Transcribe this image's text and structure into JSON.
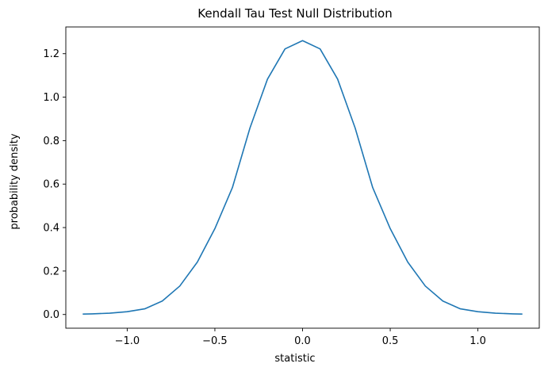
{
  "chart_data": {
    "type": "line",
    "title": "Kendall Tau Test Null Distribution",
    "xlabel": "statistic",
    "ylabel": "probability density",
    "xlim": [
      -1.35,
      1.35
    ],
    "ylim": [
      -0.063,
      1.323
    ],
    "grid": false,
    "x_ticks": [
      -1.0,
      -0.5,
      0.0,
      0.5,
      1.0
    ],
    "x_tick_labels": [
      "−1.0",
      "−0.5",
      "0.0",
      "0.5",
      "1.0"
    ],
    "y_ticks": [
      0.0,
      0.2,
      0.4,
      0.6,
      0.8,
      1.0,
      1.2
    ],
    "y_tick_labels": [
      "0.0",
      "0.2",
      "0.4",
      "0.6",
      "0.8",
      "1.0",
      "1.2"
    ],
    "series": [
      {
        "color": "#1f77b4",
        "x": [
          -1.25,
          -1.2,
          -1.1,
          -1.0,
          -0.9,
          -0.8,
          -0.7,
          -0.6,
          -0.5,
          -0.4,
          -0.3,
          -0.2,
          -0.1,
          0.0,
          0.1,
          0.2,
          0.3,
          0.4,
          0.5,
          0.6,
          0.7,
          0.8,
          0.9,
          1.0,
          1.1,
          1.2,
          1.25
        ],
        "y": [
          0.002,
          0.003,
          0.006,
          0.013,
          0.026,
          0.062,
          0.131,
          0.241,
          0.395,
          0.584,
          0.858,
          1.083,
          1.222,
          1.26,
          1.222,
          1.083,
          0.858,
          0.584,
          0.395,
          0.241,
          0.131,
          0.062,
          0.026,
          0.013,
          0.006,
          0.003,
          0.002
        ]
      }
    ]
  }
}
